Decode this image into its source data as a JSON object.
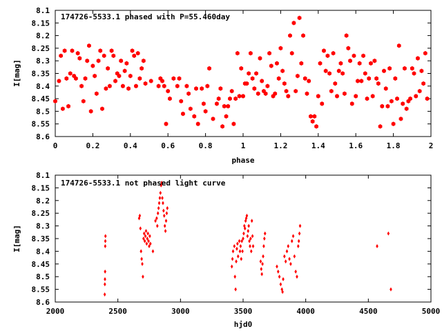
{
  "colors": {
    "points": "#ff0000",
    "axes": "#000000",
    "background": "#ffffff"
  },
  "chart_data": [
    {
      "type": "scatter",
      "title": "174726-5533.1 phased with P=55.460day",
      "xlabel": "phase",
      "ylabel": "I[mag]",
      "xlim": [
        0,
        2
      ],
      "ylim": [
        8.6,
        8.1
      ],
      "y_inverted": true,
      "grid": false,
      "marker": "hexagon",
      "xticks": [
        "0",
        "0.2",
        "0.4",
        "0.6",
        "0.8",
        "1",
        "1.2",
        "1.4",
        "1.6",
        "1.8",
        "2"
      ],
      "yticks": [
        "8.1",
        "8.15",
        "8.2",
        "8.25",
        "8.3",
        "8.35",
        "8.4",
        "8.45",
        "8.5",
        "8.55",
        "8.6"
      ],
      "points": [
        [
          0.0,
          8.46
        ],
        [
          0.02,
          8.38
        ],
        [
          0.03,
          8.28
        ],
        [
          0.04,
          8.49
        ],
        [
          0.05,
          8.26
        ],
        [
          0.06,
          8.37
        ],
        [
          0.07,
          8.48
        ],
        [
          0.08,
          8.35
        ],
        [
          0.09,
          8.26
        ],
        [
          0.1,
          8.36
        ],
        [
          0.11,
          8.37
        ],
        [
          0.12,
          8.27
        ],
        [
          0.13,
          8.29
        ],
        [
          0.14,
          8.4
        ],
        [
          0.15,
          8.46
        ],
        [
          0.16,
          8.37
        ],
        [
          0.17,
          8.3
        ],
        [
          0.18,
          8.24
        ],
        [
          0.19,
          8.5
        ],
        [
          0.2,
          8.32
        ],
        [
          0.21,
          8.36
        ],
        [
          0.22,
          8.43
        ],
        [
          0.23,
          8.3
        ],
        [
          0.24,
          8.26
        ],
        [
          0.25,
          8.49
        ],
        [
          0.26,
          8.28
        ],
        [
          0.27,
          8.41
        ],
        [
          0.28,
          8.33
        ],
        [
          0.29,
          8.4
        ],
        [
          0.3,
          8.26
        ],
        [
          0.31,
          8.28
        ],
        [
          0.32,
          8.38
        ],
        [
          0.33,
          8.35
        ],
        [
          0.34,
          8.36
        ],
        [
          0.35,
          8.3
        ],
        [
          0.36,
          8.4
        ],
        [
          0.37,
          8.34
        ],
        [
          0.38,
          8.31
        ],
        [
          0.39,
          8.41
        ],
        [
          0.4,
          8.36
        ],
        [
          0.41,
          8.26
        ],
        [
          0.42,
          8.28
        ],
        [
          0.43,
          8.4
        ],
        [
          0.44,
          8.27
        ],
        [
          0.45,
          8.37
        ],
        [
          0.46,
          8.33
        ],
        [
          0.47,
          8.3
        ],
        [
          0.48,
          8.39
        ],
        [
          0.51,
          8.38
        ],
        [
          0.55,
          8.4
        ],
        [
          0.56,
          8.37
        ],
        [
          0.57,
          8.38
        ],
        [
          0.58,
          8.4
        ],
        [
          0.59,
          8.55
        ],
        [
          0.6,
          8.42
        ],
        [
          0.61,
          8.45
        ],
        [
          0.63,
          8.37
        ],
        [
          0.65,
          8.4
        ],
        [
          0.66,
          8.37
        ],
        [
          0.67,
          8.46
        ],
        [
          0.68,
          8.51
        ],
        [
          0.7,
          8.4
        ],
        [
          0.71,
          8.43
        ],
        [
          0.72,
          8.49
        ],
        [
          0.74,
          8.52
        ],
        [
          0.75,
          8.41
        ],
        [
          0.76,
          8.55
        ],
        [
          0.78,
          8.41
        ],
        [
          0.79,
          8.47
        ],
        [
          0.8,
          8.5
        ],
        [
          0.81,
          8.4
        ],
        [
          0.82,
          8.33
        ],
        [
          0.84,
          8.53
        ],
        [
          0.86,
          8.47
        ],
        [
          0.87,
          8.45
        ],
        [
          0.88,
          8.41
        ],
        [
          0.89,
          8.56
        ],
        [
          0.9,
          8.48
        ],
        [
          0.91,
          8.52
        ],
        [
          0.92,
          8.48
        ],
        [
          0.93,
          8.45
        ],
        [
          0.94,
          8.42
        ],
        [
          0.95,
          8.55
        ],
        [
          0.96,
          8.45
        ],
        [
          0.97,
          8.27
        ],
        [
          0.98,
          8.44
        ],
        [
          0.99,
          8.33
        ],
        [
          1.0,
          8.44
        ],
        [
          1.01,
          8.39
        ],
        [
          1.02,
          8.39
        ],
        [
          1.03,
          8.35
        ],
        [
          1.04,
          8.27
        ],
        [
          1.05,
          8.37
        ],
        [
          1.06,
          8.41
        ],
        [
          1.07,
          8.35
        ],
        [
          1.08,
          8.43
        ],
        [
          1.09,
          8.29
        ],
        [
          1.1,
          8.38
        ],
        [
          1.11,
          8.42
        ],
        [
          1.12,
          8.43
        ],
        [
          1.13,
          8.4
        ],
        [
          1.14,
          8.27
        ],
        [
          1.15,
          8.32
        ],
        [
          1.16,
          8.44
        ],
        [
          1.17,
          8.43
        ],
        [
          1.18,
          8.31
        ],
        [
          1.19,
          8.37
        ],
        [
          1.2,
          8.25
        ],
        [
          1.21,
          8.34
        ],
        [
          1.22,
          8.39
        ],
        [
          1.23,
          8.42
        ],
        [
          1.24,
          8.44
        ],
        [
          1.25,
          8.2
        ],
        [
          1.26,
          8.27
        ],
        [
          1.27,
          8.15
        ],
        [
          1.28,
          8.42
        ],
        [
          1.29,
          8.36
        ],
        [
          1.3,
          8.13
        ],
        [
          1.31,
          8.31
        ],
        [
          1.32,
          8.2
        ],
        [
          1.33,
          8.37
        ],
        [
          1.34,
          8.43
        ],
        [
          1.35,
          8.38
        ],
        [
          1.36,
          8.52
        ],
        [
          1.37,
          8.54
        ],
        [
          1.38,
          8.52
        ],
        [
          1.39,
          8.56
        ],
        [
          1.4,
          8.44
        ],
        [
          1.41,
          8.31
        ],
        [
          1.42,
          8.47
        ],
        [
          1.43,
          8.26
        ],
        [
          1.44,
          8.34
        ],
        [
          1.45,
          8.28
        ],
        [
          1.46,
          8.35
        ],
        [
          1.47,
          8.42
        ],
        [
          1.48,
          8.27
        ],
        [
          1.49,
          8.39
        ],
        [
          1.5,
          8.44
        ],
        [
          1.51,
          8.34
        ],
        [
          1.52,
          8.31
        ],
        [
          1.53,
          8.35
        ],
        [
          1.54,
          8.43
        ],
        [
          1.55,
          8.2
        ],
        [
          1.56,
          8.25
        ],
        [
          1.57,
          8.3
        ],
        [
          1.58,
          8.47
        ],
        [
          1.59,
          8.28
        ],
        [
          1.6,
          8.44
        ],
        [
          1.61,
          8.38
        ],
        [
          1.62,
          8.31
        ],
        [
          1.63,
          8.38
        ],
        [
          1.64,
          8.28
        ],
        [
          1.65,
          8.35
        ],
        [
          1.66,
          8.45
        ],
        [
          1.67,
          8.37
        ],
        [
          1.68,
          8.31
        ],
        [
          1.69,
          8.44
        ],
        [
          1.7,
          8.3
        ],
        [
          1.71,
          8.37
        ],
        [
          1.72,
          8.39
        ],
        [
          1.73,
          8.56
        ],
        [
          1.74,
          8.48
        ],
        [
          1.75,
          8.34
        ],
        [
          1.76,
          8.41
        ],
        [
          1.77,
          8.48
        ],
        [
          1.78,
          8.33
        ],
        [
          1.79,
          8.46
        ],
        [
          1.8,
          8.55
        ],
        [
          1.81,
          8.37
        ],
        [
          1.82,
          8.45
        ],
        [
          1.83,
          8.24
        ],
        [
          1.84,
          8.53
        ],
        [
          1.85,
          8.47
        ],
        [
          1.86,
          8.33
        ],
        [
          1.87,
          8.49
        ],
        [
          1.88,
          8.46
        ],
        [
          1.89,
          8.45
        ],
        [
          1.9,
          8.33
        ],
        [
          1.91,
          8.35
        ],
        [
          1.92,
          8.44
        ],
        [
          1.93,
          8.29
        ],
        [
          1.94,
          8.42
        ],
        [
          1.95,
          8.34
        ],
        [
          1.96,
          8.39
        ],
        [
          1.97,
          8.27
        ],
        [
          1.98,
          8.45
        ]
      ]
    },
    {
      "type": "scatter",
      "title": "174726-5533.1 not phased light curve",
      "xlabel": "hjd0",
      "ylabel": "I[mag]",
      "xlim": [
        2000,
        5000
      ],
      "ylim": [
        8.6,
        8.1
      ],
      "y_inverted": true,
      "grid": false,
      "marker": "diamond",
      "xticks": [
        "2000",
        "2500",
        "3000",
        "3500",
        "4000",
        "4500",
        "5000"
      ],
      "yticks": [
        "8.1",
        "8.15",
        "8.2",
        "8.25",
        "8.3",
        "8.35",
        "8.4",
        "8.45",
        "8.5",
        "8.55",
        "8.6"
      ],
      "points": [
        [
          2395,
          8.57
        ],
        [
          2396,
          8.53
        ],
        [
          2397,
          8.51
        ],
        [
          2398,
          8.48
        ],
        [
          2399,
          8.38
        ],
        [
          2400,
          8.36
        ],
        [
          2401,
          8.34
        ],
        [
          2670,
          8.27
        ],
        [
          2675,
          8.26
        ],
        [
          2680,
          8.31
        ],
        [
          2685,
          8.4
        ],
        [
          2690,
          8.43
        ],
        [
          2695,
          8.45
        ],
        [
          2700,
          8.5
        ],
        [
          2705,
          8.35
        ],
        [
          2710,
          8.33
        ],
        [
          2715,
          8.36
        ],
        [
          2720,
          8.34
        ],
        [
          2725,
          8.32
        ],
        [
          2730,
          8.37
        ],
        [
          2735,
          8.35
        ],
        [
          2740,
          8.33
        ],
        [
          2745,
          8.36
        ],
        [
          2750,
          8.38
        ],
        [
          2755,
          8.34
        ],
        [
          2760,
          8.37
        ],
        [
          2780,
          8.4
        ],
        [
          2800,
          8.28
        ],
        [
          2810,
          8.27
        ],
        [
          2815,
          8.3
        ],
        [
          2820,
          8.25
        ],
        [
          2825,
          8.23
        ],
        [
          2830,
          8.21
        ],
        [
          2835,
          8.19
        ],
        [
          2840,
          8.17
        ],
        [
          2845,
          8.14
        ],
        [
          2850,
          8.13
        ],
        [
          2855,
          8.19
        ],
        [
          2860,
          8.21
        ],
        [
          2865,
          8.24
        ],
        [
          2870,
          8.26
        ],
        [
          2875,
          8.3
        ],
        [
          2880,
          8.32
        ],
        [
          2885,
          8.28
        ],
        [
          2890,
          8.25
        ],
        [
          2895,
          8.23
        ],
        [
          3410,
          8.46
        ],
        [
          3415,
          8.43
        ],
        [
          3420,
          8.4
        ],
        [
          3430,
          8.38
        ],
        [
          3435,
          8.5
        ],
        [
          3440,
          8.55
        ],
        [
          3445,
          8.44
        ],
        [
          3450,
          8.39
        ],
        [
          3455,
          8.37
        ],
        [
          3460,
          8.42
        ],
        [
          3470,
          8.36
        ],
        [
          3475,
          8.4
        ],
        [
          3480,
          8.38
        ],
        [
          3485,
          8.43
        ],
        [
          3490,
          8.36
        ],
        [
          3495,
          8.4
        ],
        [
          3500,
          8.35
        ],
        [
          3505,
          8.33
        ],
        [
          3510,
          8.3
        ],
        [
          3515,
          8.31
        ],
        [
          3520,
          8.28
        ],
        [
          3525,
          8.27
        ],
        [
          3530,
          8.26
        ],
        [
          3535,
          8.34
        ],
        [
          3540,
          8.32
        ],
        [
          3545,
          8.3
        ],
        [
          3550,
          8.36
        ],
        [
          3555,
          8.38
        ],
        [
          3560,
          8.35
        ],
        [
          3565,
          8.4
        ],
        [
          3570,
          8.28
        ],
        [
          3575,
          8.34
        ],
        [
          3580,
          8.38
        ],
        [
          3640,
          8.44
        ],
        [
          3645,
          8.47
        ],
        [
          3650,
          8.49
        ],
        [
          3655,
          8.45
        ],
        [
          3660,
          8.42
        ],
        [
          3665,
          8.38
        ],
        [
          3670,
          8.35
        ],
        [
          3675,
          8.33
        ],
        [
          3770,
          8.46
        ],
        [
          3780,
          8.48
        ],
        [
          3790,
          8.5
        ],
        [
          3800,
          8.53
        ],
        [
          3810,
          8.55
        ],
        [
          3815,
          8.56
        ],
        [
          3820,
          8.51
        ],
        [
          3830,
          8.42
        ],
        [
          3840,
          8.44
        ],
        [
          3850,
          8.4
        ],
        [
          3860,
          8.38
        ],
        [
          3870,
          8.43
        ],
        [
          3880,
          8.45
        ],
        [
          3890,
          8.36
        ],
        [
          3900,
          8.34
        ],
        [
          3910,
          8.42
        ],
        [
          3920,
          8.48
        ],
        [
          3930,
          8.5
        ],
        [
          3940,
          8.38
        ],
        [
          3945,
          8.36
        ],
        [
          3950,
          8.33
        ],
        [
          3955,
          8.3
        ],
        [
          4570,
          8.38
        ],
        [
          4660,
          8.33
        ],
        [
          4680,
          8.55
        ]
      ]
    }
  ]
}
